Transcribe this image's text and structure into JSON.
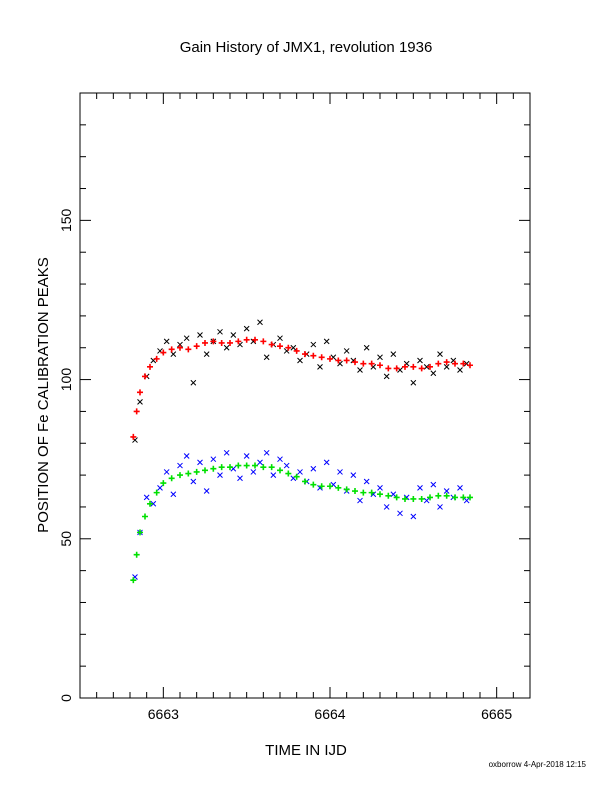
{
  "chart_data": {
    "type": "scatter",
    "title": "Gain History of JMX1, revolution 1936",
    "xlabel": "TIME IN IJD",
    "ylabel": "POSITION OF Fe CALIBRATION PEAKS",
    "xlim": [
      6662.5,
      6665.2
    ],
    "ylim": [
      0,
      190
    ],
    "xticks": [
      6663,
      6664,
      6665
    ],
    "yticks": [
      0,
      50,
      100,
      150
    ],
    "series": [
      {
        "color": "#000000",
        "marker": "x",
        "x": [
          6662.83,
          6662.86,
          6662.9,
          6662.94,
          6662.98,
          6663.02,
          6663.06,
          6663.1,
          6663.14,
          6663.18,
          6663.22,
          6663.26,
          6663.3,
          6663.34,
          6663.38,
          6663.42,
          6663.46,
          6663.5,
          6663.54,
          6663.58,
          6663.62,
          6663.66,
          6663.7,
          6663.74,
          6663.78,
          6663.82,
          6663.86,
          6663.9,
          6663.94,
          6663.98,
          6664.02,
          6664.06,
          6664.1,
          6664.14,
          6664.18,
          6664.22,
          6664.26,
          6664.3,
          6664.34,
          6664.38,
          6664.42,
          6664.46,
          6664.5,
          6664.54,
          6664.58,
          6664.62,
          6664.66,
          6664.7,
          6664.74,
          6664.78,
          6664.82
        ],
        "y": [
          81,
          93,
          101,
          106,
          109,
          112,
          108,
          111,
          113,
          99,
          114,
          108,
          112,
          115,
          110,
          114,
          111,
          116,
          112,
          118,
          107,
          111,
          113,
          109,
          110,
          106,
          108,
          111,
          104,
          112,
          107,
          105,
          109,
          106,
          103,
          110,
          104,
          107,
          101,
          108,
          103,
          105,
          99,
          106,
          104,
          102,
          108,
          104,
          106,
          103,
          105
        ]
      },
      {
        "color": "#ff0000",
        "marker": "+",
        "x": [
          6662.82,
          6662.84,
          6662.86,
          6662.89,
          6662.92,
          6662.96,
          6663.0,
          6663.05,
          6663.1,
          6663.15,
          6663.2,
          6663.25,
          6663.3,
          6663.35,
          6663.4,
          6663.45,
          6663.5,
          6663.55,
          6663.6,
          6663.65,
          6663.7,
          6663.75,
          6663.8,
          6663.85,
          6663.9,
          6663.95,
          6664.0,
          6664.05,
          6664.1,
          6664.15,
          6664.2,
          6664.25,
          6664.3,
          6664.35,
          6664.4,
          6664.45,
          6664.5,
          6664.55,
          6664.6,
          6664.65,
          6664.7,
          6664.75,
          6664.8,
          6664.84
        ],
        "y": [
          82,
          90,
          96,
          101,
          104,
          106.5,
          108.5,
          109.5,
          110,
          109.5,
          110.5,
          111.5,
          112,
          111.5,
          111.5,
          112,
          112.5,
          112.5,
          112,
          111,
          110.5,
          110,
          109,
          108,
          107.5,
          107,
          106.5,
          106,
          106,
          105.5,
          105,
          105,
          104.5,
          103.5,
          103.5,
          104,
          104,
          103.5,
          104,
          105,
          105.5,
          105,
          105,
          104.5
        ]
      },
      {
        "color": "#0000ff",
        "marker": "x",
        "x": [
          6662.83,
          6662.86,
          6662.9,
          6662.94,
          6662.98,
          6663.02,
          6663.06,
          6663.1,
          6663.14,
          6663.18,
          6663.22,
          6663.26,
          6663.3,
          6663.34,
          6663.38,
          6663.42,
          6663.46,
          6663.5,
          6663.54,
          6663.58,
          6663.62,
          6663.66,
          6663.7,
          6663.74,
          6663.78,
          6663.82,
          6663.86,
          6663.9,
          6663.94,
          6663.98,
          6664.02,
          6664.06,
          6664.1,
          6664.14,
          6664.18,
          6664.22,
          6664.26,
          6664.3,
          6664.34,
          6664.38,
          6664.42,
          6664.46,
          6664.5,
          6664.54,
          6664.58,
          6664.62,
          6664.66,
          6664.7,
          6664.74,
          6664.78,
          6664.82
        ],
        "y": [
          38,
          52,
          63,
          61,
          66,
          71,
          64,
          73,
          76,
          68,
          74,
          65,
          75,
          70,
          77,
          72,
          69,
          76,
          71,
          74,
          77,
          70,
          75,
          73,
          69,
          71,
          68,
          72,
          66,
          74,
          67,
          71,
          65,
          70,
          62,
          68,
          64,
          66,
          60,
          64,
          58,
          63,
          57,
          66,
          62,
          67,
          60,
          65,
          63,
          66,
          62
        ]
      },
      {
        "color": "#00e000",
        "marker": "+",
        "x": [
          6662.82,
          6662.84,
          6662.86,
          6662.89,
          6662.92,
          6662.96,
          6663.0,
          6663.05,
          6663.1,
          6663.15,
          6663.2,
          6663.25,
          6663.3,
          6663.35,
          6663.4,
          6663.45,
          6663.5,
          6663.55,
          6663.6,
          6663.65,
          6663.7,
          6663.75,
          6663.8,
          6663.85,
          6663.9,
          6663.95,
          6664.0,
          6664.05,
          6664.1,
          6664.15,
          6664.2,
          6664.25,
          6664.3,
          6664.35,
          6664.4,
          6664.45,
          6664.5,
          6664.55,
          6664.6,
          6664.65,
          6664.7,
          6664.75,
          6664.8,
          6664.84
        ],
        "y": [
          37,
          45,
          52,
          57,
          61,
          64.5,
          67.5,
          69,
          70,
          70.5,
          71,
          71.5,
          72,
          72.5,
          72.5,
          73,
          73,
          73,
          72.5,
          72.5,
          71.5,
          70.5,
          69.5,
          68,
          67,
          66.5,
          66.5,
          66,
          65.5,
          65,
          64.5,
          64.5,
          64,
          63.5,
          63,
          62.5,
          62.5,
          62.5,
          63,
          63.5,
          63.5,
          63,
          63,
          63
        ]
      }
    ]
  },
  "footer": {
    "stamp": "oxborrow  4-Apr-2018 12:15"
  },
  "colors": {
    "axis": "#000000",
    "background": "#ffffff"
  }
}
